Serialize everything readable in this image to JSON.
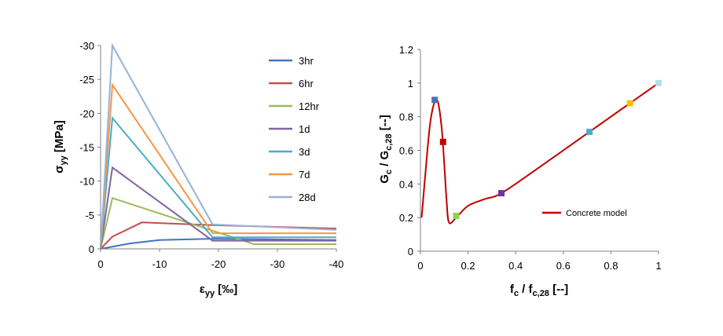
{
  "chart_data": [
    {
      "type": "line",
      "xlabel": {
        "main": "ε",
        "sub": "yy",
        "rest": " [‰]"
      },
      "ylabel": {
        "main": "σ",
        "sub": "yy",
        "rest": " [MPa]"
      },
      "xlim": [
        0,
        -40
      ],
      "ylim": [
        0,
        -30
      ],
      "xticks": [
        "0",
        "-10",
        "-20",
        "-30",
        "-40"
      ],
      "yticks": [
        "0",
        "-5",
        "-10",
        "-15",
        "-20",
        "-25",
        "-30"
      ],
      "grid": false,
      "legend_position": "top-right",
      "series": [
        {
          "name": "3hr",
          "color": "#4472c4",
          "x": [
            0,
            -5,
            -10,
            -19,
            -40
          ],
          "y": [
            0,
            -0.8,
            -1.3,
            -1.5,
            -1.3
          ]
        },
        {
          "name": "6hr",
          "color": "#c0504d",
          "x": [
            0,
            -2,
            -7,
            -19,
            -40
          ],
          "y": [
            0,
            -1.8,
            -3.9,
            -3.5,
            -3.0
          ]
        },
        {
          "name": "12hr",
          "color": "#9bbb59",
          "x": [
            0,
            -2,
            -26,
            -40
          ],
          "y": [
            0,
            -7.5,
            -0.7,
            -0.7
          ]
        },
        {
          "name": "1d",
          "color": "#8064a2",
          "x": [
            0,
            -2,
            -19,
            -40
          ],
          "y": [
            0,
            -12,
            -1.2,
            -1.2
          ]
        },
        {
          "name": "3d",
          "color": "#4bacc6",
          "x": [
            0,
            -2,
            -19,
            -40
          ],
          "y": [
            0,
            -19.3,
            -1.7,
            -1.7
          ]
        },
        {
          "name": "7d",
          "color": "#f79646",
          "x": [
            0,
            -2,
            -19,
            -40
          ],
          "y": [
            0,
            -24.2,
            -2.3,
            -2.3
          ]
        },
        {
          "name": "28d",
          "color": "#95b3d7",
          "x": [
            0,
            -2,
            -19,
            -40
          ],
          "y": [
            0,
            -30,
            -3.6,
            -2.8
          ]
        }
      ]
    },
    {
      "type": "line",
      "xlabel": {
        "main1": "f",
        "sub1": "c",
        "mid": " / f",
        "sub2": "c,28",
        "rest": " [--]"
      },
      "ylabel": {
        "main1": "G",
        "sub1": "c",
        "mid": " / G",
        "sub2": "c,28",
        "rest": " [--]"
      },
      "xlim": [
        0,
        1
      ],
      "ylim": [
        0,
        1.2
      ],
      "xticks": [
        "0",
        "0.2",
        "0.4",
        "0.6",
        "0.8",
        "1"
      ],
      "yticks": [
        "0",
        "0.2",
        "0.4",
        "0.6",
        "0.8",
        "1",
        "1.2"
      ],
      "grid": false,
      "legend_position": "center-right",
      "series": [
        {
          "name": "Concrete model",
          "color": "#c00000",
          "x": [
            0.005,
            0.02,
            0.04,
            0.06,
            0.075,
            0.09,
            0.1,
            0.11,
            0.12,
            0.15,
            0.2,
            0.27,
            0.34,
            0.5,
            0.71,
            0.88,
            1.0
          ],
          "y": [
            0.2,
            0.45,
            0.75,
            0.89,
            0.88,
            0.72,
            0.52,
            0.3,
            0.17,
            0.2,
            0.27,
            0.31,
            0.345,
            0.5,
            0.71,
            0.88,
            1.0
          ]
        }
      ],
      "points": [
        {
          "x": 0.06,
          "y": 0.9,
          "color": "#4f6fb0"
        },
        {
          "x": 0.095,
          "y": 0.65,
          "color": "#c00000"
        },
        {
          "x": 0.15,
          "y": 0.21,
          "color": "#92d050"
        },
        {
          "x": 0.34,
          "y": 0.345,
          "color": "#7030a0"
        },
        {
          "x": 0.71,
          "y": 0.71,
          "color": "#4bacc6"
        },
        {
          "x": 0.88,
          "y": 0.88,
          "color": "#ffc000"
        },
        {
          "x": 1.0,
          "y": 1.0,
          "color": "#b7dee8"
        }
      ]
    }
  ]
}
